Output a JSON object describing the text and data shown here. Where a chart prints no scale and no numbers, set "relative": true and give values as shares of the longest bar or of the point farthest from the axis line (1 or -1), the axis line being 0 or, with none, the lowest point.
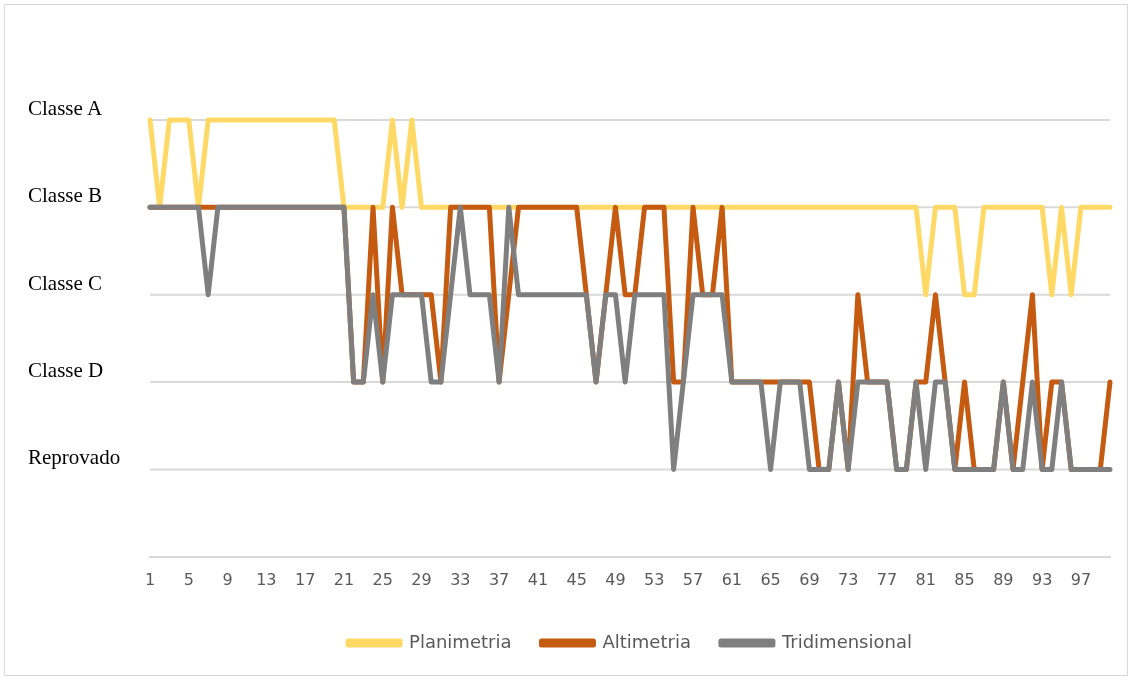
{
  "chart_data": {
    "type": "line",
    "categories": [
      "1",
      null,
      null,
      null,
      "5",
      null,
      null,
      null,
      "9",
      null,
      null,
      null,
      "13",
      null,
      null,
      null,
      "17",
      null,
      null,
      null,
      "21",
      null,
      null,
      null,
      "25",
      null,
      null,
      null,
      "29",
      null,
      null,
      null,
      "33",
      null,
      null,
      null,
      "37",
      null,
      null,
      null,
      "41",
      null,
      null,
      null,
      "45",
      null,
      null,
      null,
      "49",
      null,
      null,
      null,
      "53",
      null,
      null,
      null,
      "57",
      null,
      null,
      null,
      "61",
      null,
      null,
      null,
      "65",
      null,
      null,
      null,
      "69",
      null,
      null,
      null,
      "73",
      null,
      null,
      null,
      "77",
      null,
      null,
      null,
      "81",
      null,
      null,
      null,
      "85",
      null,
      null,
      null,
      "89",
      null,
      null,
      null,
      "93",
      null,
      null,
      null,
      "97",
      null,
      null,
      null
    ],
    "relative": true,
    "series": [
      {
        "name": "Planimetria",
        "color": "#ffd966",
        "values": [
          1,
          0.8,
          1,
          1,
          1,
          0.8,
          1,
          1,
          1,
          1,
          1,
          1,
          1,
          1,
          1,
          1,
          1,
          1,
          1,
          1,
          0.8,
          0.8,
          0.8,
          0.8,
          0.8,
          1,
          0.8,
          1,
          0.8,
          0.8,
          0.8,
          0.8,
          0.8,
          0.8,
          0.8,
          0.8,
          0.8,
          0.8,
          0.8,
          0.8,
          0.8,
          0.8,
          0.8,
          0.8,
          0.8,
          0.8,
          0.8,
          0.8,
          0.8,
          0.8,
          0.8,
          0.8,
          0.8,
          0.8,
          0.8,
          0.8,
          0.8,
          0.8,
          0.8,
          0.8,
          0.8,
          0.8,
          0.8,
          0.8,
          0.8,
          0.8,
          0.8,
          0.8,
          0.8,
          0.8,
          0.8,
          0.8,
          0.8,
          0.8,
          0.8,
          0.8,
          0.8,
          0.8,
          0.8,
          0.8,
          0.6,
          0.8,
          0.8,
          0.8,
          0.6,
          0.6,
          0.8,
          0.8,
          0.8,
          0.8,
          0.8,
          0.8,
          0.8,
          0.6,
          0.8,
          0.6,
          0.8,
          0.8,
          0.8,
          0.8
        ]
      },
      {
        "name": "Altimetria",
        "color": "#c55a11",
        "values": [
          0.8,
          0.8,
          0.8,
          0.8,
          0.8,
          0.8,
          0.8,
          0.8,
          0.8,
          0.8,
          0.8,
          0.8,
          0.8,
          0.8,
          0.8,
          0.8,
          0.8,
          0.8,
          0.8,
          0.8,
          0.8,
          0.4,
          0.4,
          0.8,
          0.4,
          0.8,
          0.6,
          0.6,
          0.6,
          0.6,
          0.4,
          0.8,
          0.8,
          0.8,
          0.8,
          0.8,
          0.4,
          0.6,
          0.8,
          0.8,
          0.8,
          0.8,
          0.8,
          0.8,
          0.8,
          0.6,
          0.4,
          0.6,
          0.8,
          0.6,
          0.6,
          0.8,
          0.8,
          0.8,
          0.4,
          0.4,
          0.8,
          0.6,
          0.6,
          0.8,
          0.4,
          0.4,
          0.4,
          0.4,
          0.4,
          0.4,
          0.4,
          0.4,
          0.4,
          0.2,
          0.2,
          0.4,
          0.2,
          0.6,
          0.4,
          0.4,
          0.4,
          0.2,
          0.2,
          0.4,
          0.4,
          0.6,
          0.4,
          0.2,
          0.4,
          0.2,
          0.2,
          0.2,
          0.4,
          0.2,
          0.4,
          0.6,
          0.2,
          0.4,
          0.4,
          0.2,
          0.2,
          0.2,
          0.2,
          0.4
        ]
      },
      {
        "name": "Tridimensional",
        "color": "#7f7f7f",
        "values": [
          0.8,
          0.8,
          0.8,
          0.8,
          0.8,
          0.8,
          0.6,
          0.8,
          0.8,
          0.8,
          0.8,
          0.8,
          0.8,
          0.8,
          0.8,
          0.8,
          0.8,
          0.8,
          0.8,
          0.8,
          0.8,
          0.4,
          0.4,
          0.6,
          0.4,
          0.6,
          0.6,
          0.6,
          0.6,
          0.4,
          0.4,
          0.6,
          0.8,
          0.6,
          0.6,
          0.6,
          0.4,
          0.8,
          0.6,
          0.6,
          0.6,
          0.6,
          0.6,
          0.6,
          0.6,
          0.6,
          0.4,
          0.6,
          0.6,
          0.4,
          0.6,
          0.6,
          0.6,
          0.6,
          0.2,
          0.4,
          0.6,
          0.6,
          0.6,
          0.6,
          0.4,
          0.4,
          0.4,
          0.4,
          0.2,
          0.4,
          0.4,
          0.4,
          0.2,
          0.2,
          0.2,
          0.4,
          0.2,
          0.4,
          0.4,
          0.4,
          0.4,
          0.2,
          0.2,
          0.4,
          0.2,
          0.4,
          0.4,
          0.2,
          0.2,
          0.2,
          0.2,
          0.2,
          0.4,
          0.2,
          0.2,
          0.4,
          0.2,
          0.2,
          0.4,
          0.2,
          0.2,
          0.2,
          0.2,
          0.2
        ]
      }
    ],
    "ref_lines": [
      {
        "axis": "y",
        "value": 1,
        "label": "Classe A",
        "color": "#d9d9d9"
      },
      {
        "axis": "y",
        "value": 0.8,
        "label": "Classe B",
        "color": "#d9d9d9"
      },
      {
        "axis": "y",
        "value": 0.6,
        "label": "Classe C",
        "color": "#d9d9d9"
      },
      {
        "axis": "y",
        "value": 0.4,
        "label": "Classe D",
        "color": "#d9d9d9"
      },
      {
        "axis": "y",
        "value": 0.2,
        "label": "Reprovado",
        "color": "#d9d9d9"
      }
    ],
    "legend": "bottom",
    "marker": "none",
    "line_style": "solid"
  }
}
